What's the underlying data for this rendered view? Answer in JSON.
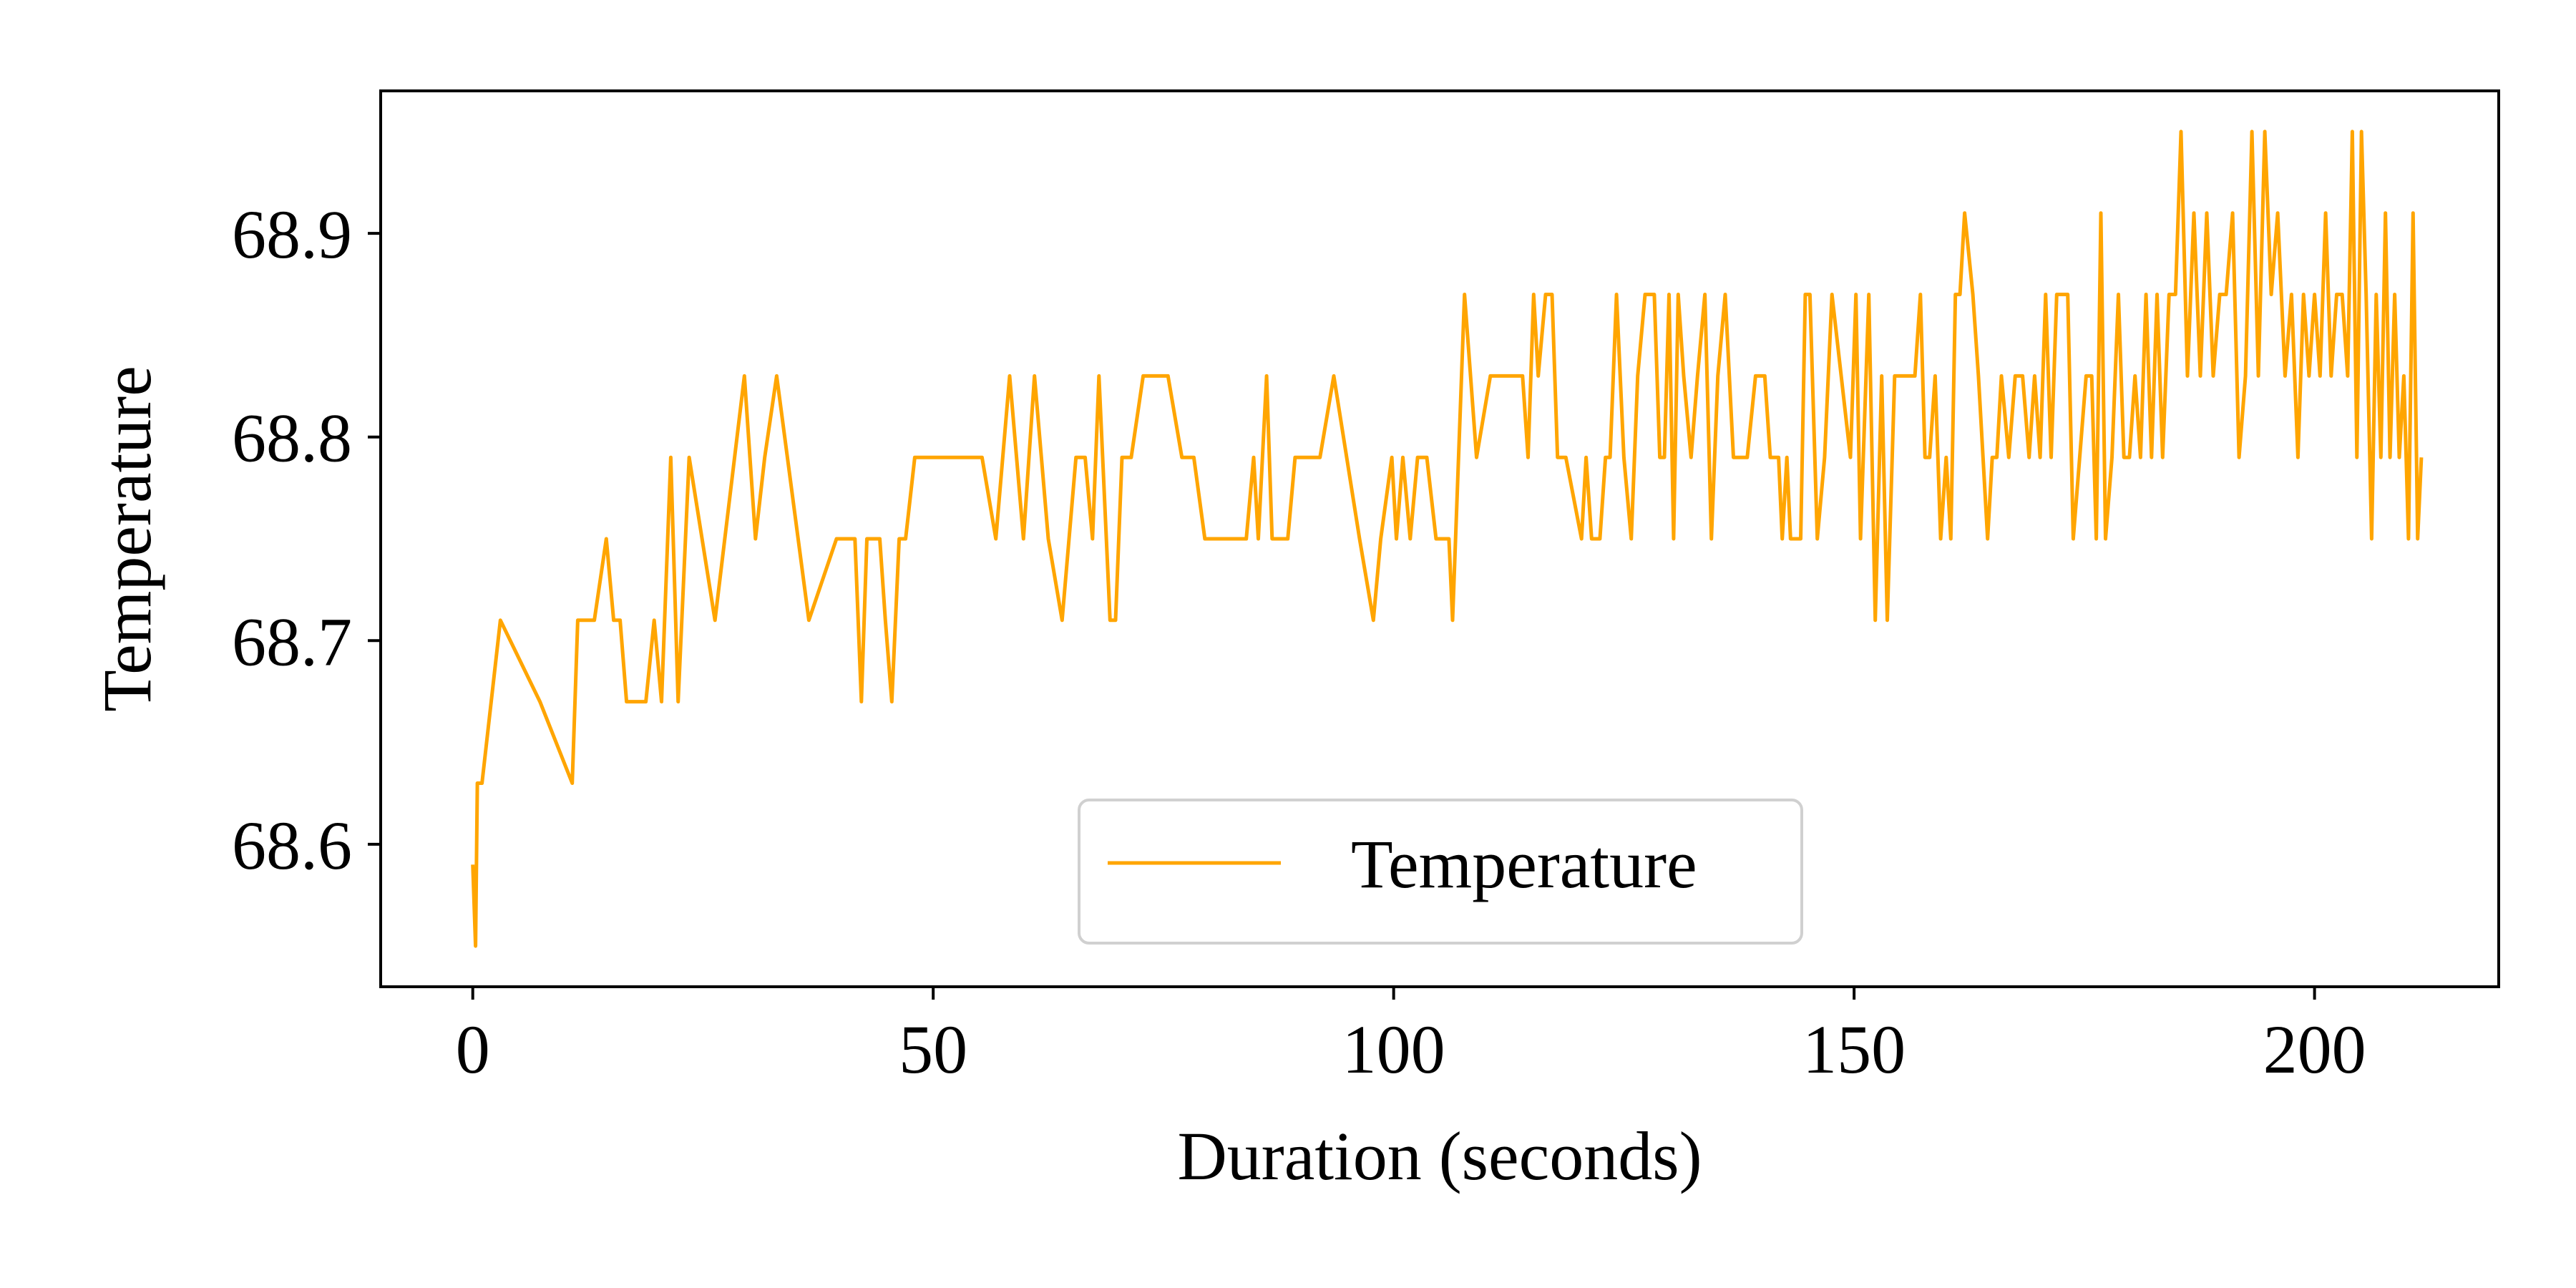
{
  "chart_data": {
    "type": "line",
    "title": "",
    "xlabel": "Duration (seconds)",
    "ylabel": "Temperature",
    "xlim": [
      -10,
      220
    ],
    "ylim": [
      68.53,
      68.97
    ],
    "x_ticks": [
      "0",
      "50",
      "100",
      "150",
      "200"
    ],
    "x_tick_values": [
      0,
      50,
      100,
      150,
      200
    ],
    "y_ticks": [
      "68.6",
      "68.7",
      "68.8",
      "68.9"
    ],
    "y_tick_values": [
      68.6,
      68.7,
      68.8,
      68.9
    ],
    "grid": false,
    "legend_position": "lower center",
    "series": [
      {
        "name": "Temperature",
        "color": "#FFA500",
        "points": [
          [
            0.0,
            68.59
          ],
          [
            0.3,
            68.55
          ],
          [
            0.5,
            68.63
          ],
          [
            1.0,
            68.63
          ],
          [
            3.0,
            68.71
          ],
          [
            7.3,
            68.67
          ],
          [
            10.8,
            68.63
          ],
          [
            11.4,
            68.71
          ],
          [
            13.2,
            68.71
          ],
          [
            14.5,
            68.75
          ],
          [
            15.3,
            68.71
          ],
          [
            16.0,
            68.71
          ],
          [
            16.7,
            68.67
          ],
          [
            18.8,
            68.67
          ],
          [
            19.7,
            68.71
          ],
          [
            20.5,
            68.67
          ],
          [
            21.5,
            68.79
          ],
          [
            22.3,
            68.67
          ],
          [
            23.5,
            68.79
          ],
          [
            26.3,
            68.71
          ],
          [
            29.5,
            68.83
          ],
          [
            30.7,
            68.75
          ],
          [
            31.7,
            68.79
          ],
          [
            33.0,
            68.83
          ],
          [
            36.5,
            68.71
          ],
          [
            39.5,
            68.75
          ],
          [
            41.5,
            68.75
          ],
          [
            42.2,
            68.67
          ],
          [
            42.8,
            68.75
          ],
          [
            44.2,
            68.75
          ],
          [
            44.8,
            68.71
          ],
          [
            45.5,
            68.67
          ],
          [
            46.3,
            68.75
          ],
          [
            47.0,
            68.75
          ],
          [
            48.0,
            68.79
          ],
          [
            51.0,
            68.79
          ],
          [
            54.0,
            68.79
          ],
          [
            55.3,
            68.79
          ],
          [
            56.8,
            68.75
          ],
          [
            58.3,
            68.83
          ],
          [
            59.8,
            68.75
          ],
          [
            61.0,
            68.83
          ],
          [
            62.5,
            68.75
          ],
          [
            64.0,
            68.71
          ],
          [
            65.5,
            68.79
          ],
          [
            66.5,
            68.79
          ],
          [
            67.3,
            68.75
          ],
          [
            68.0,
            68.83
          ],
          [
            69.2,
            68.71
          ],
          [
            69.8,
            68.71
          ],
          [
            70.5,
            68.79
          ],
          [
            71.5,
            68.79
          ],
          [
            72.8,
            68.83
          ],
          [
            75.5,
            68.83
          ],
          [
            77.0,
            68.79
          ],
          [
            78.3,
            68.79
          ],
          [
            79.5,
            68.75
          ],
          [
            82.0,
            68.75
          ],
          [
            84.0,
            68.75
          ],
          [
            84.8,
            68.79
          ],
          [
            85.3,
            68.75
          ],
          [
            86.2,
            68.83
          ],
          [
            86.8,
            68.75
          ],
          [
            88.5,
            68.75
          ],
          [
            89.3,
            68.79
          ],
          [
            91.0,
            68.79
          ],
          [
            92.0,
            68.79
          ],
          [
            93.5,
            68.83
          ],
          [
            96.3,
            68.75
          ],
          [
            97.8,
            68.71
          ],
          [
            98.6,
            68.75
          ],
          [
            99.8,
            68.79
          ],
          [
            100.3,
            68.75
          ],
          [
            101.0,
            68.79
          ],
          [
            101.8,
            68.75
          ],
          [
            102.6,
            68.79
          ],
          [
            103.6,
            68.79
          ],
          [
            104.6,
            68.75
          ],
          [
            105.4,
            68.75
          ],
          [
            106.0,
            68.75
          ],
          [
            106.4,
            68.71
          ],
          [
            107.7,
            68.87
          ],
          [
            109.0,
            68.79
          ],
          [
            110.5,
            68.83
          ],
          [
            114.0,
            68.83
          ],
          [
            114.6,
            68.79
          ],
          [
            115.2,
            68.87
          ],
          [
            115.7,
            68.83
          ],
          [
            116.5,
            68.87
          ],
          [
            117.2,
            68.87
          ],
          [
            117.8,
            68.79
          ],
          [
            118.7,
            68.79
          ],
          [
            120.4,
            68.75
          ],
          [
            120.9,
            68.79
          ],
          [
            121.5,
            68.75
          ],
          [
            122.4,
            68.75
          ],
          [
            123.0,
            68.79
          ],
          [
            123.5,
            68.79
          ],
          [
            124.2,
            68.87
          ],
          [
            125.0,
            68.79
          ],
          [
            125.8,
            68.75
          ],
          [
            126.5,
            68.83
          ],
          [
            127.3,
            68.87
          ],
          [
            128.3,
            68.87
          ],
          [
            128.9,
            68.79
          ],
          [
            129.4,
            68.79
          ],
          [
            129.9,
            68.87
          ],
          [
            130.4,
            68.75
          ],
          [
            130.9,
            68.87
          ],
          [
            131.5,
            68.83
          ],
          [
            132.3,
            68.79
          ],
          [
            133.0,
            68.83
          ],
          [
            133.8,
            68.87
          ],
          [
            134.5,
            68.75
          ],
          [
            135.2,
            68.83
          ],
          [
            136.0,
            68.87
          ],
          [
            136.9,
            68.79
          ],
          [
            137.7,
            68.79
          ],
          [
            138.4,
            68.79
          ],
          [
            139.3,
            68.83
          ],
          [
            140.3,
            68.83
          ],
          [
            140.9,
            68.79
          ],
          [
            141.8,
            68.79
          ],
          [
            142.2,
            68.75
          ],
          [
            142.7,
            68.79
          ],
          [
            143.1,
            68.75
          ],
          [
            144.2,
            68.75
          ],
          [
            144.7,
            68.87
          ],
          [
            145.2,
            68.87
          ],
          [
            146.0,
            68.75
          ],
          [
            146.8,
            68.79
          ],
          [
            147.6,
            68.87
          ],
          [
            149.6,
            68.79
          ],
          [
            150.2,
            68.87
          ],
          [
            150.7,
            68.75
          ],
          [
            151.6,
            68.87
          ],
          [
            152.3,
            68.71
          ],
          [
            153.0,
            68.83
          ],
          [
            153.6,
            68.71
          ],
          [
            154.4,
            68.83
          ],
          [
            155.0,
            68.83
          ],
          [
            156.6,
            68.83
          ],
          [
            157.2,
            68.87
          ],
          [
            157.7,
            68.79
          ],
          [
            158.2,
            68.79
          ],
          [
            158.8,
            68.83
          ],
          [
            159.4,
            68.75
          ],
          [
            160.0,
            68.79
          ],
          [
            160.5,
            68.75
          ],
          [
            161.0,
            68.87
          ],
          [
            161.5,
            68.87
          ],
          [
            162.0,
            68.91
          ],
          [
            162.9,
            68.87
          ],
          [
            163.5,
            68.83
          ],
          [
            164.0,
            68.79
          ],
          [
            164.5,
            68.75
          ],
          [
            165.0,
            68.79
          ],
          [
            165.5,
            68.79
          ],
          [
            166.0,
            68.83
          ],
          [
            166.8,
            68.79
          ],
          [
            167.5,
            68.83
          ],
          [
            168.3,
            68.83
          ],
          [
            169.0,
            68.79
          ],
          [
            169.6,
            68.83
          ],
          [
            170.2,
            68.79
          ],
          [
            170.8,
            68.87
          ],
          [
            171.4,
            68.79
          ],
          [
            172.0,
            68.87
          ],
          [
            172.6,
            68.87
          ],
          [
            173.2,
            68.87
          ],
          [
            173.8,
            68.75
          ],
          [
            174.5,
            68.79
          ],
          [
            175.2,
            68.83
          ],
          [
            175.8,
            68.83
          ],
          [
            176.3,
            68.75
          ],
          [
            176.8,
            68.91
          ],
          [
            177.3,
            68.75
          ],
          [
            178.0,
            68.79
          ],
          [
            178.7,
            68.87
          ],
          [
            179.3,
            68.79
          ],
          [
            179.9,
            68.79
          ],
          [
            180.5,
            68.83
          ],
          [
            181.1,
            68.79
          ],
          [
            181.7,
            68.87
          ],
          [
            182.3,
            68.79
          ],
          [
            182.9,
            68.87
          ],
          [
            183.5,
            68.79
          ],
          [
            184.2,
            68.87
          ],
          [
            184.9,
            68.87
          ],
          [
            185.5,
            68.95
          ],
          [
            186.2,
            68.83
          ],
          [
            186.9,
            68.91
          ],
          [
            187.6,
            68.83
          ],
          [
            188.3,
            68.91
          ],
          [
            189.0,
            68.83
          ],
          [
            189.7,
            68.87
          ],
          [
            190.4,
            68.87
          ],
          [
            191.1,
            68.91
          ],
          [
            191.8,
            68.79
          ],
          [
            192.5,
            68.83
          ],
          [
            193.2,
            68.95
          ],
          [
            193.9,
            68.83
          ],
          [
            194.6,
            68.95
          ],
          [
            195.3,
            68.87
          ],
          [
            196.0,
            68.91
          ],
          [
            196.8,
            68.83
          ],
          [
            197.5,
            68.87
          ],
          [
            198.2,
            68.79
          ],
          [
            198.8,
            68.87
          ],
          [
            199.4,
            68.83
          ],
          [
            200.0,
            68.87
          ],
          [
            200.6,
            68.83
          ],
          [
            201.2,
            68.91
          ],
          [
            201.8,
            68.83
          ],
          [
            202.4,
            68.87
          ],
          [
            203.0,
            68.87
          ],
          [
            203.6,
            68.83
          ],
          [
            204.1,
            68.95
          ],
          [
            204.6,
            68.79
          ],
          [
            205.1,
            68.95
          ],
          [
            205.6,
            68.87
          ],
          [
            206.2,
            68.75
          ],
          [
            206.7,
            68.87
          ],
          [
            207.2,
            68.79
          ],
          [
            207.7,
            68.91
          ],
          [
            208.2,
            68.79
          ],
          [
            208.7,
            68.87
          ],
          [
            209.2,
            68.79
          ],
          [
            209.7,
            68.83
          ],
          [
            210.2,
            68.75
          ],
          [
            210.7,
            68.91
          ],
          [
            211.2,
            68.75
          ],
          [
            211.6,
            68.79
          ]
        ]
      }
    ]
  }
}
